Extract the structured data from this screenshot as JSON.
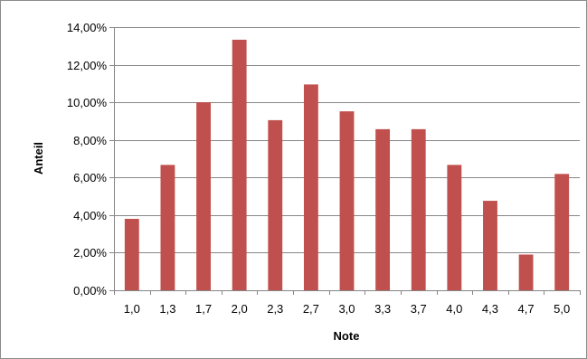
{
  "chart_data": {
    "type": "bar",
    "title": "",
    "xlabel": "Note",
    "ylabel": "Anteil",
    "categories": [
      "1,0",
      "1,3",
      "1,7",
      "2,0",
      "2,3",
      "2,7",
      "3,0",
      "3,3",
      "3,7",
      "4,0",
      "4,3",
      "4,7",
      "5,0"
    ],
    "values": [
      3.8,
      6.67,
      10.0,
      13.33,
      9.05,
      10.95,
      9.52,
      8.57,
      8.57,
      6.67,
      4.76,
      1.9,
      6.19
    ],
    "value_unit": "%",
    "ylim": [
      0,
      14
    ],
    "yticks": [
      {
        "value": 0,
        "label": "0,00%"
      },
      {
        "value": 2,
        "label": "2,00%"
      },
      {
        "value": 4,
        "label": "4,00%"
      },
      {
        "value": 6,
        "label": "6,00%"
      },
      {
        "value": 8,
        "label": "8,00%"
      },
      {
        "value": 10,
        "label": "10,00%"
      },
      {
        "value": 12,
        "label": "12,00%"
      },
      {
        "value": 14,
        "label": "14,00%"
      }
    ],
    "grid": true,
    "legend": "none",
    "bar_color": "#c0504d",
    "grid_color": "#868686"
  }
}
